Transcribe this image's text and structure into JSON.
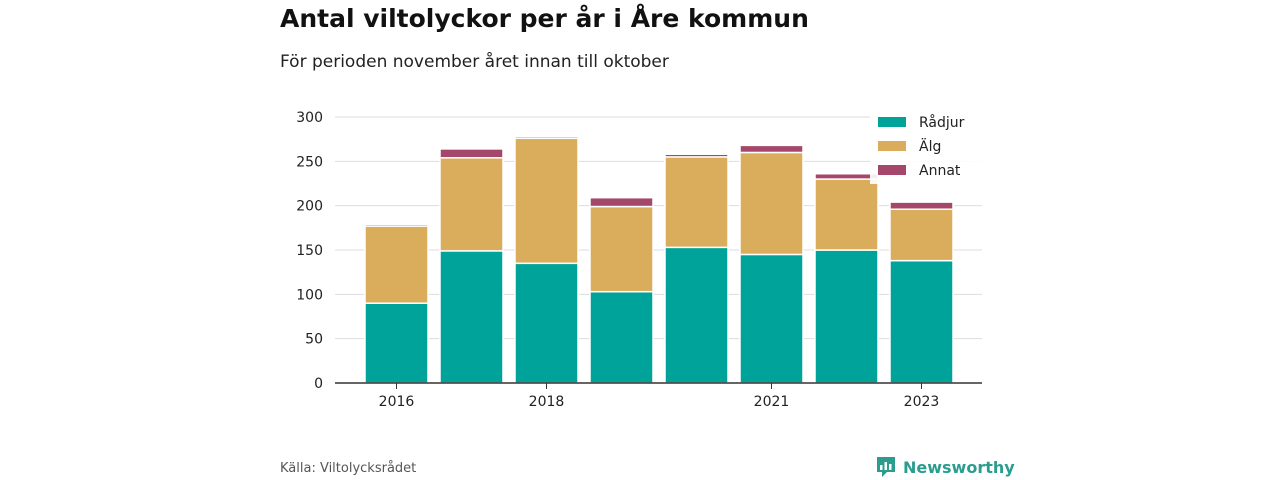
{
  "title": "Antal viltolyckor per år i Åre kommun",
  "subtitle": "För perioden november året innan till oktober",
  "source": "Källa: Viltolycksrådet",
  "brand": "Newsworthy",
  "icons": {
    "brand_logo": "newsworthy-logo-icon"
  },
  "colors": {
    "radjur": "#00a39a",
    "alg": "#d9ad5b",
    "annat": "#a4476a",
    "brand": "#2a9d8f"
  },
  "chart_data": {
    "type": "bar",
    "stacked": true,
    "categories": [
      "2016",
      "2017",
      "2018",
      "2019",
      "2020",
      "2021",
      "2022",
      "2023"
    ],
    "x_tick_labels": [
      "2016",
      "",
      "2018",
      "",
      "",
      "2021",
      "",
      "2023"
    ],
    "y_ticks": [
      "0",
      "50",
      "100",
      "150",
      "200",
      "250",
      "300"
    ],
    "ylim": [
      0,
      300
    ],
    "grid": true,
    "legend_position": "top-right",
    "series": [
      {
        "name": "Rådjur",
        "color": "#00a39a",
        "values": [
          90,
          149,
          135,
          103,
          153,
          145,
          150,
          138
        ]
      },
      {
        "name": "Älg",
        "color": "#d9ad5b",
        "values": [
          87,
          105,
          141,
          96,
          102,
          115,
          80,
          58
        ]
      },
      {
        "name": "Annat",
        "color": "#a4476a",
        "values": [
          2,
          10,
          2,
          10,
          3,
          8,
          6,
          8
        ]
      }
    ]
  }
}
